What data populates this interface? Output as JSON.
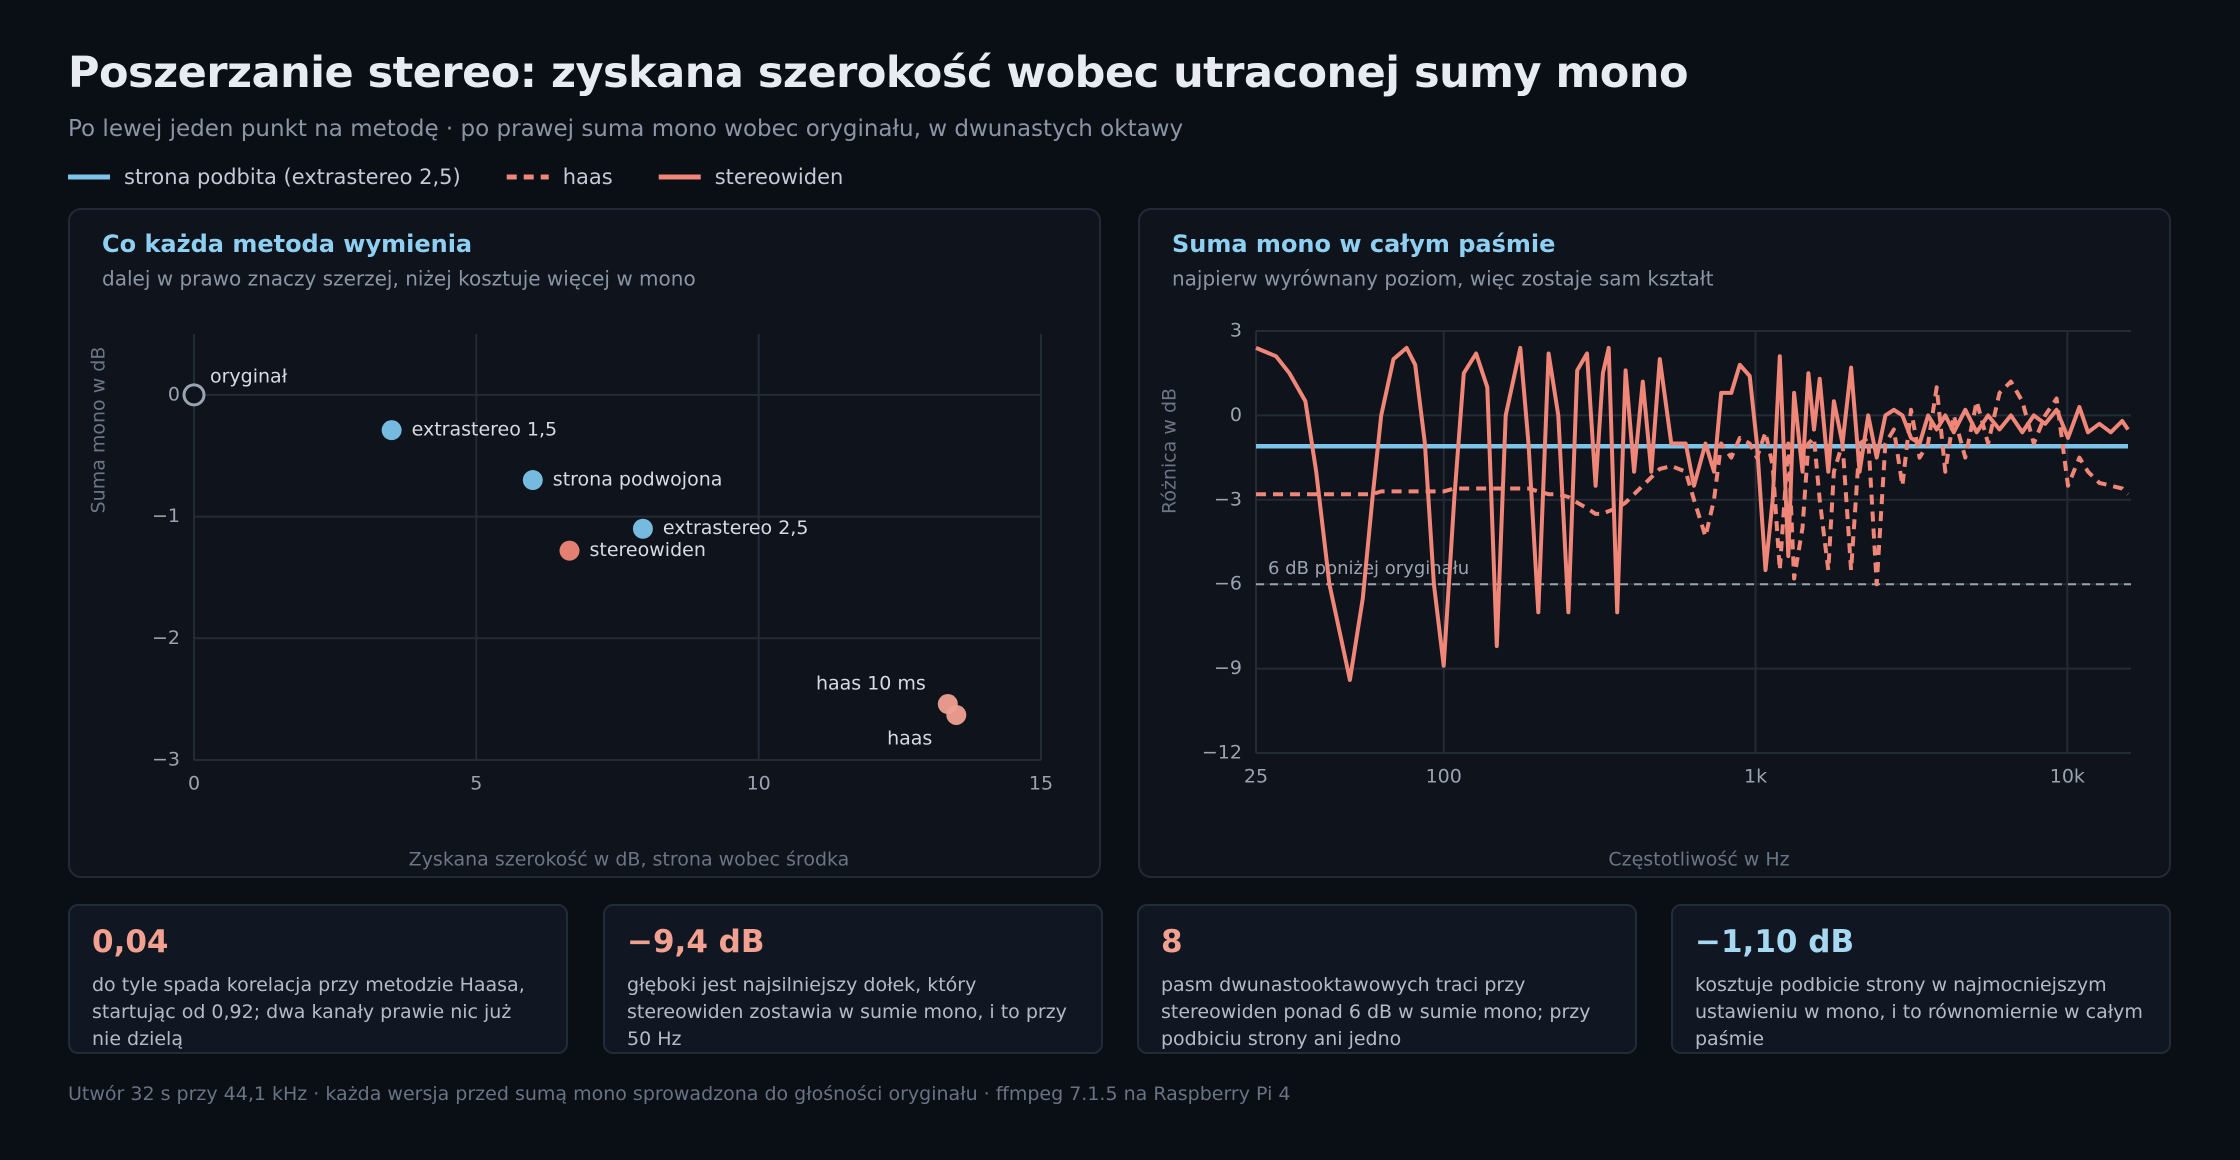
{
  "header": {
    "title": "Poszerzanie stereo: zyskana szerokość wobec utraconej sumy mono",
    "subtitle": "Po lewej jeden punkt na metodę · po prawej suma mono wobec oryginału, w dwunastych oktawy"
  },
  "chart_data": [
    {
      "type": "scatter",
      "title": "Co każda metoda wymienia",
      "subtitle": "dalej w prawo znaczy szerzej, niżej kosztuje więcej w mono",
      "xlabel": "Zyskana szerokość w dB, strona wobec środka",
      "ylabel": "Suma mono w dB",
      "xlim": [
        0,
        15
      ],
      "ylim": [
        -3,
        0.5
      ],
      "xticks": [
        0,
        5,
        10,
        15
      ],
      "yticks": [
        0,
        {
          "value": -1,
          "label": "−1"
        },
        {
          "value": -2,
          "label": "−2"
        },
        {
          "value": -3,
          "label": "−3"
        }
      ],
      "grid": true,
      "points": [
        {
          "name": "oryginał",
          "x": 0,
          "y": 0,
          "color": "#9aa3b0",
          "hollow": true
        },
        {
          "name": "extrastereo 1,5",
          "x": 3.5,
          "y": -0.29,
          "color": "#7cc4ea"
        },
        {
          "name": "strona podwojona",
          "x": 6.0,
          "y": -0.7,
          "color": "#7cc4ea"
        },
        {
          "name": "extrastereo 2,5",
          "x": 7.95,
          "y": -1.1,
          "color": "#7cc4ea"
        },
        {
          "name": "stereowiden",
          "x": 6.65,
          "y": -1.28,
          "color": "#ef8677"
        },
        {
          "name": "haas 10 ms",
          "x": 13.35,
          "y": -2.54,
          "color": "#f0a090"
        },
        {
          "name": "haas",
          "x": 13.5,
          "y": -2.63,
          "color": "#f0a090"
        }
      ]
    },
    {
      "type": "line",
      "title": "Suma mono w całym paśmie",
      "subtitle": "najpierw wyrównany poziom, więc zostaje sam kształt",
      "xlabel": "Częstotliwość w Hz",
      "ylabel": "Różnica w dB",
      "xscale": "log",
      "xlim": [
        25,
        16000
      ],
      "ylim": [
        -12,
        3
      ],
      "xticks": [
        25,
        100,
        {
          "value": 1000,
          "label": "1k"
        },
        {
          "value": 10000,
          "label": "10k"
        }
      ],
      "yticks": [
        3,
        0,
        {
          "value": -3,
          "label": "−3"
        },
        {
          "value": -6,
          "label": "−6"
        },
        {
          "value": -9,
          "label": "−9"
        },
        {
          "value": -12,
          "label": "−12"
        }
      ],
      "grid": true,
      "reference": {
        "value": -6,
        "label": "6 dB poniżej oryginału",
        "color": "#9aa3b0"
      },
      "x": [
        25,
        29,
        32,
        36,
        39,
        43,
        47,
        50,
        55,
        59,
        63,
        69,
        76,
        81,
        87,
        93,
        100,
        108,
        116,
        127,
        138,
        148,
        158,
        176,
        187,
        201,
        217,
        233,
        251,
        268,
        288,
        307,
        324,
        338,
        360,
        383,
        408,
        435,
        463,
        493,
        537,
        597,
        635,
        691,
        736,
        776,
        836,
        890,
        958,
        1010,
        1076,
        1135,
        1196,
        1274,
        1329,
        1415,
        1477,
        1540,
        1606,
        1711,
        1784,
        1901,
        2025,
        2157,
        2297,
        2447,
        2608,
        2778,
        2959,
        3152,
        3358,
        3577,
        3810,
        4059,
        4325,
        4705,
        5119,
        5568,
        6058,
        6590,
        7172,
        7803,
        8488,
        9234,
        10047,
        10930,
        11645,
        12670,
        13783,
        14995,
        15645
      ],
      "series": [
        {
          "name": "strona podbita (extrastereo 2,5)",
          "color": "#7cc4ea",
          "x": [
            25,
            15645
          ],
          "values": [
            -1.1,
            -1.1
          ]
        },
        {
          "name": "haas",
          "color": "#ef8677",
          "dash": true,
          "values": [
            -2.8,
            -2.8,
            -2.8,
            -2.8,
            -2.8,
            -2.8,
            -2.8,
            -2.8,
            -2.8,
            -2.8,
            -2.7,
            -2.7,
            -2.7,
            -2.7,
            -2.7,
            -2.7,
            -2.7,
            -2.6,
            -2.6,
            -2.6,
            -2.6,
            -2.6,
            -2.6,
            -2.6,
            -2.6,
            -2.7,
            -2.8,
            -2.8,
            -2.9,
            -3.1,
            -3.3,
            -3.5,
            -3.5,
            -3.4,
            -3.3,
            -3.1,
            -2.8,
            -2.5,
            -2.2,
            -1.9,
            -1.8,
            -2.0,
            -3.0,
            -4.3,
            -3.0,
            -1.0,
            -1.5,
            -0.8,
            -1.0,
            -1.5,
            -0.6,
            -1.8,
            -5.5,
            -1.0,
            -5.8,
            -4.0,
            -1.0,
            -0.8,
            -3.0,
            -5.5,
            -2.0,
            -1.0,
            -5.5,
            -1.0,
            -0.8,
            -6.0,
            -1.0,
            -0.5,
            -2.5,
            0.2,
            -1.5,
            -1.0,
            1.0,
            -2.0,
            0.0,
            -1.5,
            0.5,
            -1.0,
            0.8,
            1.2,
            0.5,
            -1.0,
            0.0,
            0.6,
            -2.5,
            -1.5,
            -2.0,
            -2.4,
            -2.5,
            -2.6,
            -2.8
          ]
        },
        {
          "name": "stereowiden",
          "color": "#ef8677",
          "values": [
            2.4,
            2.1,
            1.5,
            0.5,
            -2,
            -6,
            -8,
            -9.4,
            -6.5,
            -3,
            0,
            2,
            2.4,
            1.8,
            -1,
            -6,
            -8.9,
            -3,
            1.5,
            2.2,
            1,
            -8.2,
            0,
            2.4,
            -1,
            -7,
            2.2,
            0,
            -7,
            1.6,
            2.2,
            -2.5,
            1.5,
            2.4,
            -7,
            1.6,
            -2,
            1.2,
            -2,
            2,
            -1,
            -1,
            -2.5,
            -1,
            -2,
            0.8,
            0.8,
            1.8,
            1.4,
            -1,
            -5.5,
            -3,
            2.1,
            -5,
            0.8,
            -2,
            1.5,
            -0.5,
            1.3,
            -2,
            0.5,
            -1,
            1.7,
            -2,
            0,
            -1.5,
            0,
            0.2,
            0,
            -0.8,
            -1,
            0,
            -0.5,
            0,
            -0.6,
            0.2,
            -0.6,
            0,
            -0.5,
            0,
            -0.6,
            0,
            -0.3,
            0.2,
            -0.8,
            0.3,
            -0.6,
            -0.3,
            -0.6,
            -0.2,
            -0.5
          ]
        }
      ]
    }
  ],
  "cards": [
    {
      "value": "0,04",
      "text": "do tyle spada korelacja przy metodzie Haasa, startując od 0,92; dwa kanały prawie nic już nie dzielą",
      "accent": "#f2a08f"
    },
    {
      "value": "−9,4 dB",
      "text": "głęboki jest najsilniejszy dołek, który stereowiden zostawia w sumie mono, i to przy 50 Hz",
      "accent": "#f2a08f"
    },
    {
      "value": "8",
      "text": "pasm dwunastooktawowych traci przy stereowiden ponad 6 dB w sumie mono; przy podbiciu strony ani jedno",
      "accent": "#f2a08f"
    },
    {
      "value": "−1,10 dB",
      "text": "kosztuje podbicie strony w najmocniejszym ustawieniu w mono, i to równomiernie w całym paśmie",
      "accent": "#a6d8f2"
    }
  ],
  "footer": "Utwór 32 s przy 44,1 kHz · każda wersja przed sumą mono sprowadzona do głośności oryginału · ffmpeg 7.1.5 na Raspberry Pi 4"
}
